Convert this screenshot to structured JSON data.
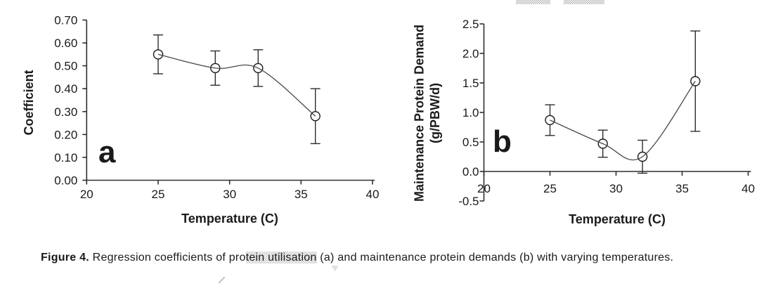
{
  "figure": {
    "caption": {
      "label": "Figure 4.",
      "before_highlight": " Regression coefficients of pro",
      "highlighted": "tein utilisation",
      "after_highlight": " (a) and maintenance protein demands (b) with varying temperatures."
    }
  },
  "colors": {
    "axis": "#2e2e2e",
    "curve": "#4a4a4a",
    "text": "#1a1a1a",
    "marker_fill": "#ffffff"
  },
  "chart_data": [
    {
      "id": "a",
      "panel_label": "a",
      "type": "line",
      "title": "",
      "xlabel": "Temperature (C)",
      "ylabel_lines": [
        "Coefficient"
      ],
      "xlim": [
        20,
        40
      ],
      "ylim": [
        0.0,
        0.7
      ],
      "x_axis_at": 0.0,
      "grid": false,
      "legend": null,
      "marker": "open-circle",
      "curve": "smooth-spline",
      "error_bars": true,
      "xticks": {
        "values": [
          20,
          25,
          30,
          35,
          40
        ],
        "labels": [
          "20",
          "25",
          "30",
          "35",
          "40"
        ]
      },
      "yticks": {
        "values": [
          0.0,
          0.1,
          0.2,
          0.3,
          0.4,
          0.5,
          0.6,
          0.7
        ],
        "labels": [
          "0.00",
          "0.10",
          "0.20",
          "0.30",
          "0.40",
          "0.50",
          "0.60",
          "0.70"
        ]
      },
      "x": [
        25,
        29,
        32,
        36
      ],
      "y": [
        0.55,
        0.49,
        0.49,
        0.28
      ],
      "yerr": [
        0.085,
        0.075,
        0.08,
        0.12
      ]
    },
    {
      "id": "b",
      "panel_label": "b",
      "type": "line",
      "title": "",
      "xlabel": "Temperature (C)",
      "ylabel_lines": [
        "Maintenance Protein Demand",
        "(g/PBW/d)"
      ],
      "xlim": [
        20,
        40
      ],
      "ylim": [
        -0.5,
        2.5
      ],
      "x_axis_at": 0.0,
      "grid": false,
      "legend": null,
      "marker": "open-circle",
      "curve": "smooth-spline",
      "error_bars": true,
      "xticks": {
        "values": [
          20,
          25,
          30,
          35,
          40
        ],
        "labels": [
          "20",
          "25",
          "30",
          "35",
          "40"
        ]
      },
      "yticks": {
        "values": [
          -0.5,
          0.0,
          0.5,
          1.0,
          1.5,
          2.0,
          2.5
        ],
        "labels": [
          "-0.5",
          "0.0",
          "0.5",
          "1.0",
          "1.5",
          "2.0",
          "2.5"
        ]
      },
      "x": [
        25,
        29,
        32,
        36
      ],
      "y": [
        0.87,
        0.47,
        0.25,
        1.53
      ],
      "yerr": [
        0.26,
        0.23,
        0.28,
        0.85
      ]
    }
  ]
}
